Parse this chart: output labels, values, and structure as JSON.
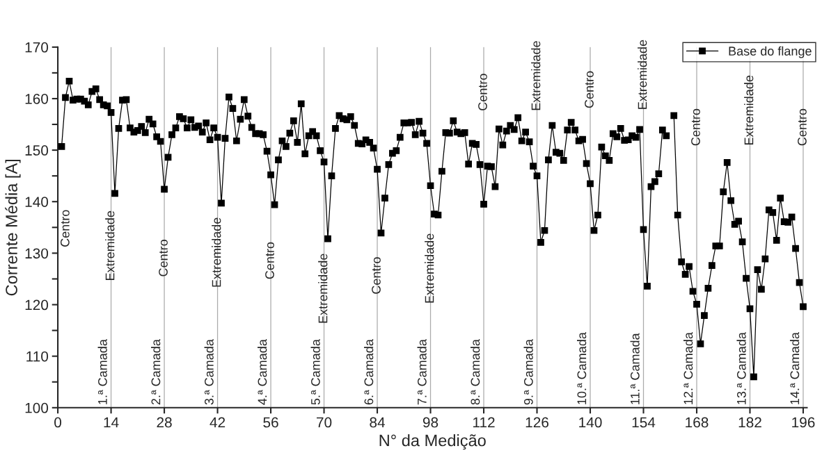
{
  "chart_data": {
    "type": "line",
    "xlabel": "N° da Medição",
    "ylabel": "Corrente Média [A]",
    "xlim": [
      0,
      197
    ],
    "xticks": [
      0,
      14,
      28,
      42,
      56,
      70,
      84,
      98,
      112,
      126,
      140,
      154,
      168,
      182,
      196
    ],
    "ylim": [
      100,
      170
    ],
    "yticks": [
      100,
      {
        "value": 105,
        "label": null
      },
      110,
      {
        "value": 115,
        "label": null
      },
      120,
      {
        "value": 125,
        "label": null
      },
      130,
      {
        "value": 135,
        "label": null
      },
      140,
      {
        "value": 145,
        "label": null
      },
      150,
      {
        "value": 155,
        "label": null
      },
      160,
      {
        "value": 165,
        "label": null
      },
      170
    ],
    "grid": false,
    "legend": "top right",
    "marker": "square",
    "line_style": "solid",
    "x": [
      1,
      2,
      3,
      4,
      5,
      6,
      7,
      8,
      9,
      10,
      11,
      12,
      13,
      14,
      15,
      16,
      17,
      18,
      19,
      20,
      21,
      22,
      23,
      24,
      25,
      26,
      27,
      28,
      29,
      30,
      31,
      32,
      33,
      34,
      35,
      36,
      37,
      38,
      39,
      40,
      41,
      42,
      43,
      44,
      45,
      46,
      47,
      48,
      49,
      50,
      51,
      52,
      53,
      54,
      55,
      56,
      57,
      58,
      59,
      60,
      61,
      62,
      63,
      64,
      65,
      66,
      67,
      68,
      69,
      70,
      71,
      72,
      73,
      74,
      75,
      76,
      77,
      78,
      79,
      80,
      81,
      82,
      83,
      84,
      85,
      86,
      87,
      88,
      89,
      90,
      91,
      92,
      93,
      94,
      95,
      96,
      97,
      98,
      99,
      100,
      101,
      102,
      103,
      104,
      105,
      106,
      107,
      108,
      109,
      110,
      111,
      112,
      113,
      114,
      115,
      116,
      117,
      118,
      119,
      120,
      121,
      122,
      123,
      124,
      125,
      126,
      127,
      128,
      129,
      130,
      131,
      132,
      133,
      134,
      135,
      136,
      137,
      138,
      139,
      140,
      141,
      142,
      143,
      144,
      145,
      146,
      147,
      148,
      149,
      150,
      151,
      152,
      153,
      154,
      155,
      156,
      157,
      158,
      159,
      160,
      161,
      162,
      163,
      164,
      165,
      166,
      167,
      168,
      169,
      170,
      171,
      172,
      173,
      174,
      175,
      176,
      177,
      178,
      179,
      180,
      181,
      182,
      183,
      184,
      185,
      186,
      187,
      188,
      189,
      190,
      191,
      192,
      193,
      194,
      195,
      196
    ],
    "series": [
      {
        "name": "Base do flange",
        "color": "#000000",
        "values": [
          150.7,
          160.2,
          163.4,
          159.7,
          159.9,
          159.9,
          159.5,
          158.8,
          161.4,
          161.9,
          159.8,
          158.8,
          158.6,
          157.3,
          141.6,
          154.2,
          159.7,
          159.8,
          154.3,
          153.5,
          153.8,
          154.6,
          153.4,
          156.0,
          155.1,
          152.6,
          151.7,
          142.4,
          148.6,
          153.0,
          154.3,
          156.5,
          156.1,
          154.3,
          155.9,
          154.4,
          154.7,
          153.5,
          155.3,
          152.0,
          154.3,
          152.5,
          139.7,
          152.3,
          160.3,
          158.1,
          151.8,
          156.0,
          159.8,
          156.6,
          154.4,
          153.2,
          153.2,
          153.0,
          149.8,
          145.2,
          139.4,
          148.1,
          151.8,
          150.7,
          153.3,
          155.7,
          151.5,
          159.0,
          149.3,
          152.8,
          153.6,
          152.8,
          149.9,
          147.7,
          132.8,
          145.0,
          154.2,
          156.7,
          156.1,
          155.9,
          156.5,
          154.8,
          151.3,
          151.2,
          152.0,
          151.5,
          150.4,
          146.3,
          133.9,
          140.7,
          147.2,
          149.4,
          149.9,
          152.5,
          155.3,
          155.3,
          155.4,
          153.0,
          155.6,
          153.3,
          151.3,
          143.1,
          137.6,
          137.4,
          145.9,
          153.4,
          153.3,
          155.7,
          153.5,
          153.2,
          153.4,
          147.3,
          151.3,
          151.1,
          147.2,
          139.5,
          146.9,
          146.8,
          142.9,
          154.1,
          151.0,
          153.7,
          154.8,
          154.0,
          156.3,
          151.8,
          153.5,
          151.6,
          146.9,
          145.0,
          132.1,
          134.4,
          148.1,
          154.8,
          149.6,
          149.4,
          148.0,
          153.9,
          155.4,
          153.9,
          151.8,
          152.1,
          147.4,
          143.5,
          134.4,
          137.4,
          150.6,
          148.9,
          148.0,
          153.2,
          152.6,
          154.2,
          151.9,
          152.0,
          152.8,
          152.5,
          154.0,
          134.6,
          123.6,
          142.9,
          143.9,
          145.4,
          153.9,
          152.8,
          null,
          156.7,
          137.4,
          128.3,
          125.9,
          127.4,
          122.6,
          120.1,
          112.4,
          117.9,
          123.2,
          127.6,
          131.4,
          131.4,
          141.9,
          147.6,
          140.2,
          135.6,
          136.2,
          132.2,
          125.1,
          119.2,
          106.0,
          126.8,
          123.0,
          128.9,
          138.4,
          137.9,
          132.5,
          140.7,
          136.1,
          136.0,
          137.0,
          130.9,
          124.3,
          119.6
        ]
      }
    ],
    "ref_lines": [
      {
        "axis": "x",
        "value": 14,
        "label": "1.ª Camada",
        "color": "#aaaaaa"
      },
      {
        "axis": "x",
        "value": 28,
        "label": "2.ª Camada",
        "color": "#aaaaaa"
      },
      {
        "axis": "x",
        "value": 42,
        "label": "3.ª Camada",
        "color": "#aaaaaa"
      },
      {
        "axis": "x",
        "value": 56,
        "label": "4.ª Camada",
        "color": "#aaaaaa"
      },
      {
        "axis": "x",
        "value": 70,
        "label": "5.ª Camada",
        "color": "#aaaaaa"
      },
      {
        "axis": "x",
        "value": 84,
        "label": "6.ª Camada",
        "color": "#aaaaaa"
      },
      {
        "axis": "x",
        "value": 98,
        "label": "7.ª Camada",
        "color": "#aaaaaa"
      },
      {
        "axis": "x",
        "value": 112,
        "label": "8.ª Camada",
        "color": "#aaaaaa"
      },
      {
        "axis": "x",
        "value": 126,
        "label": "9.ª Camada",
        "color": "#aaaaaa"
      },
      {
        "axis": "x",
        "value": 140,
        "label": "10.ª Camada",
        "color": "#aaaaaa"
      },
      {
        "axis": "x",
        "value": 154,
        "label": "11.ª Camada",
        "color": "#aaaaaa"
      },
      {
        "axis": "x",
        "value": 168,
        "label": "12.ª Camada",
        "color": "#aaaaaa"
      },
      {
        "axis": "x",
        "value": 182,
        "label": "13.ª Camada",
        "color": "#aaaaaa"
      },
      {
        "axis": "x",
        "value": 196,
        "label": "14.ª Camada",
        "color": "#aaaaaa"
      }
    ],
    "annotations": [
      "Centro",
      {
        "text": "Extremidade",
        "x": 14,
        "y": 124.6
      },
      {
        "text": "Centro",
        "x": 28,
        "y": 125.4
      },
      {
        "text": "Extremidade",
        "x": 42,
        "y": 123.3
      },
      {
        "text": "Centro",
        "x": 56,
        "y": 124.9
      },
      {
        "text": "Extremidade",
        "x": 70,
        "y": 116.3
      },
      {
        "text": "Centro",
        "x": 84,
        "y": 122.0
      },
      {
        "text": "Extremidade",
        "x": 98,
        "y": 120.2
      },
      {
        "text": "Centro",
        "x": 112,
        "y": 157.6
      },
      {
        "text": "Extremidade",
        "x": 126,
        "y": 157.6
      },
      {
        "text": "Centro",
        "x": 140,
        "y": 158.1
      },
      {
        "text": "Extremidade",
        "x": 154,
        "y": 157.8
      },
      {
        "text": "Centro",
        "x": 168,
        "y": 150.8
      },
      {
        "text": "Extremidade",
        "x": 182,
        "y": 150.9
      },
      {
        "text": "Centro",
        "x": 196,
        "y": 150.8
      }
    ]
  }
}
